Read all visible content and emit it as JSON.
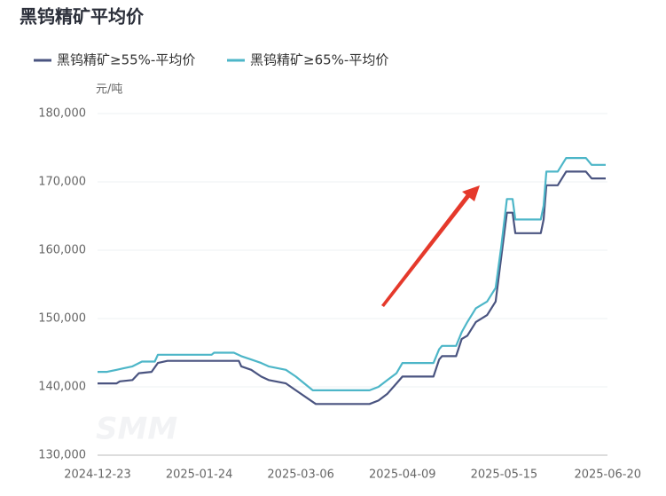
{
  "chart_data": {
    "type": "line",
    "title": "黑钨精矿平均价",
    "y_unit": "元/吨",
    "watermark": "SMM",
    "xlim": [
      "2024-12-23",
      "2025-06-20"
    ],
    "xticks": [
      "2024-12-23",
      "2025-01-24",
      "2025-03-06",
      "2025-04-09",
      "2025-05-15",
      "2025-06-20"
    ],
    "ylim": [
      130000,
      180000
    ],
    "yticks": [
      {
        "value": 130000,
        "label": "130,000"
      },
      {
        "value": 140000,
        "label": "140,000"
      },
      {
        "value": 150000,
        "label": "150,000"
      },
      {
        "value": 160000,
        "label": "160,000"
      },
      {
        "value": 170000,
        "label": "170,000"
      },
      {
        "value": 180000,
        "label": "180,000"
      }
    ],
    "grid": true,
    "series": [
      {
        "name": "黑钨精矿≥55%-平均价",
        "color": "#4a5480",
        "x": [
          "2024-12-23",
          "2024-12-29",
          "2024-12-30",
          "2025-01-03",
          "2025-01-05",
          "2025-01-09",
          "2025-01-11",
          "2025-01-14",
          "2025-02-09",
          "2025-02-10",
          "2025-02-14",
          "2025-02-18",
          "2025-02-21",
          "2025-02-28",
          "2025-03-04",
          "2025-03-11",
          "2025-03-29",
          "2025-04-01",
          "2025-04-04",
          "2025-04-07",
          "2025-04-09",
          "2025-04-20",
          "2025-04-22",
          "2025-04-23",
          "2025-04-28",
          "2025-04-30",
          "2025-05-02",
          "2025-05-05",
          "2025-05-09",
          "2025-05-12",
          "2025-05-14",
          "2025-05-16",
          "2025-05-18",
          "2025-05-19",
          "2025-05-28",
          "2025-05-29",
          "2025-05-30",
          "2025-06-03",
          "2025-06-06",
          "2025-06-13",
          "2025-06-15",
          "2025-06-20"
        ],
        "values": [
          140500,
          140500,
          140800,
          141000,
          142000,
          142200,
          143500,
          143800,
          143800,
          143000,
          142500,
          141500,
          141000,
          140500,
          139500,
          137500,
          137500,
          138000,
          139000,
          140500,
          141500,
          141500,
          144000,
          144500,
          144500,
          147000,
          147500,
          149500,
          150500,
          152500,
          159000,
          165500,
          165500,
          162500,
          162500,
          164500,
          169500,
          169500,
          171500,
          171500,
          170500,
          170500
        ]
      },
      {
        "name": "黑钨精矿≥65%-平均价",
        "color": "#4db6c8",
        "x": [
          "2024-12-23",
          "2024-12-26",
          "2024-12-29",
          "2024-12-31",
          "2025-01-03",
          "2025-01-06",
          "2025-01-10",
          "2025-01-11",
          "2025-01-29",
          "2025-01-30",
          "2025-02-07",
          "2025-02-10",
          "2025-02-14",
          "2025-02-18",
          "2025-02-21",
          "2025-02-28",
          "2025-03-04",
          "2025-03-10",
          "2025-03-29",
          "2025-04-01",
          "2025-04-04",
          "2025-04-07",
          "2025-04-09",
          "2025-04-20",
          "2025-04-22",
          "2025-04-23",
          "2025-04-28",
          "2025-04-30",
          "2025-05-02",
          "2025-05-05",
          "2025-05-09",
          "2025-05-12",
          "2025-05-14",
          "2025-05-16",
          "2025-05-18",
          "2025-05-19",
          "2025-05-28",
          "2025-05-29",
          "2025-05-30",
          "2025-06-03",
          "2025-06-06",
          "2025-06-13",
          "2025-06-15",
          "2025-06-20"
        ],
        "values": [
          142200,
          142200,
          142500,
          142700,
          143000,
          143700,
          143700,
          144700,
          144700,
          145000,
          145000,
          144500,
          144000,
          143500,
          143000,
          142500,
          141500,
          139500,
          139500,
          140000,
          141000,
          142000,
          143500,
          143500,
          145500,
          146000,
          146000,
          148000,
          149500,
          151500,
          152500,
          154500,
          160500,
          167500,
          167500,
          164500,
          164500,
          166500,
          171500,
          171500,
          173500,
          173500,
          172500,
          172500
        ]
      }
    ]
  }
}
